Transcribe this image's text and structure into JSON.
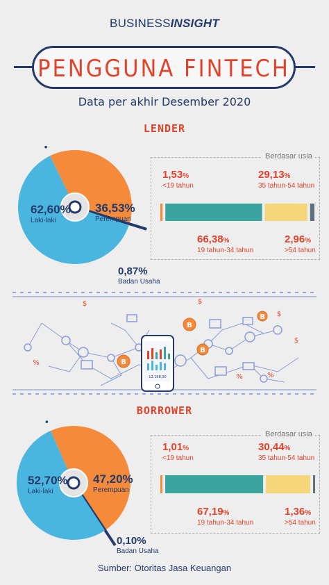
{
  "header": {
    "brand_part1": "BUSINESS",
    "brand_part2": "INSIGHT",
    "title": "PENGGUNA FINTECH",
    "subtitle": "Data per akhir Desember 2020"
  },
  "colors": {
    "navy": "#233a6b",
    "red": "#e0432b",
    "blue": "#4ab6e0",
    "orange": "#f58a3a",
    "teal": "#3aa59f",
    "yellow": "#f5d77a",
    "gray": "#5f6f82"
  },
  "chart_data": [
    {
      "type": "pie",
      "title": "LENDER",
      "slices": [
        {
          "name": "Laki-laki",
          "value": 62.6,
          "label": "62,60%"
        },
        {
          "name": "Perempuan",
          "value": 36.53,
          "label": "36,53%"
        },
        {
          "name": "Badan Usaha",
          "value": 0.87,
          "label": "0,87%"
        }
      ],
      "age_breakdown": {
        "caption": "Berdasar usia",
        "segments": [
          {
            "name": "<19 tahun",
            "value": 1.53,
            "pct": "1,53"
          },
          {
            "name": "19 tahun-34 tahun",
            "value": 66.38,
            "pct": "66,38"
          },
          {
            "name": "35 tahun-54 tahun",
            "value": 29.13,
            "pct": "29,13"
          },
          {
            "name": ">54 tahun",
            "value": 2.96,
            "pct": "2,96"
          }
        ]
      }
    },
    {
      "type": "pie",
      "title": "BORROWER",
      "slices": [
        {
          "name": "Laki-laki",
          "value": 52.7,
          "label": "52,70%"
        },
        {
          "name": "Perempuan",
          "value": 47.2,
          "label": "47,20%"
        },
        {
          "name": "Badan Usaha",
          "value": 0.1,
          "label": "0,10%"
        }
      ],
      "age_breakdown": {
        "caption": "Berdasar usia",
        "segments": [
          {
            "name": "<19 tahun",
            "value": 1.01,
            "pct": "1,01"
          },
          {
            "name": "19 tahun-34 tahun",
            "value": 67.19,
            "pct": "67,19"
          },
          {
            "name": "35 tahun-54 tahun",
            "value": 30.44,
            "pct": "30,44"
          },
          {
            "name": ">54 tahun",
            "value": 1.36,
            "pct": "1,36"
          }
        ]
      }
    }
  ],
  "illustration": {
    "phone_value": "12.168,00",
    "icon_names": [
      "bitcoin-icon",
      "bank-icon",
      "shopping-cart-icon",
      "chart-icon",
      "lock-icon",
      "scale-icon",
      "globe-icon",
      "phone-icon"
    ]
  },
  "footer": {
    "source": "Sumber: Otoritas Jasa Keuangan"
  }
}
